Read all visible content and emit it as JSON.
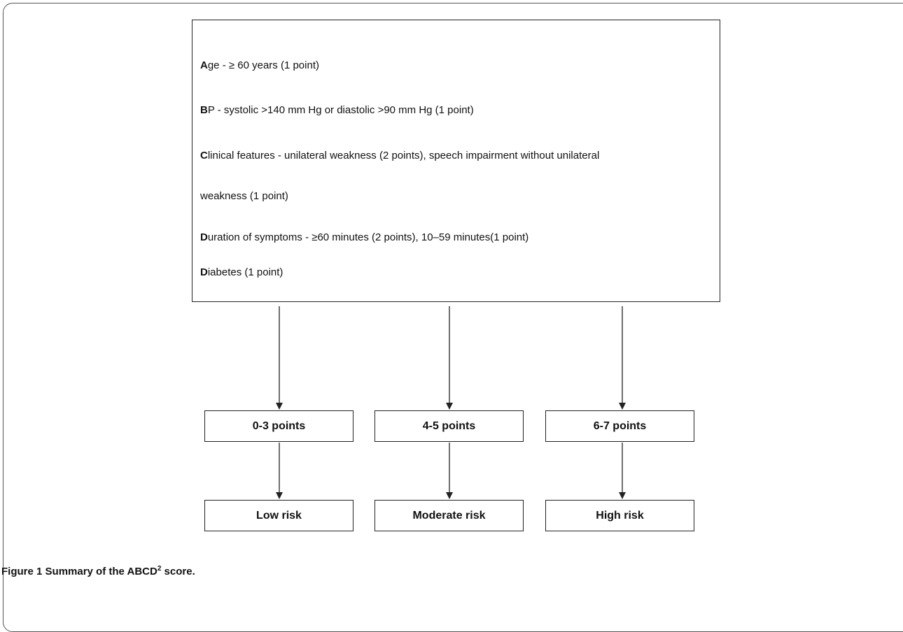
{
  "criteria": {
    "age": {
      "letter": "A",
      "text": "ge - ≥ 60 years (1 point)"
    },
    "bp": {
      "letter": "B",
      "text": "P - systolic >140 mm Hg or diastolic >90 mm Hg (1 point)"
    },
    "clinical": {
      "letter": "C",
      "text": "linical features - unilateral weakness (2 points), speech impairment without unilateral",
      "text2": "weakness (1 point)"
    },
    "duration": {
      "letter": "D",
      "text": "uration of symptoms - ≥60 minutes (2 points), 10–59 minutes(1 point)"
    },
    "diabetes": {
      "letter": "D",
      "text": "iabetes (1 point)"
    }
  },
  "scores": [
    "0-3 points",
    "4-5 points",
    "6-7 points"
  ],
  "risks": [
    "Low risk",
    "Moderate risk",
    "High risk"
  ],
  "caption": {
    "prefix": "Figure 1",
    "text": " Summary of the ABCD",
    "sup": "2",
    "suffix": " score."
  }
}
